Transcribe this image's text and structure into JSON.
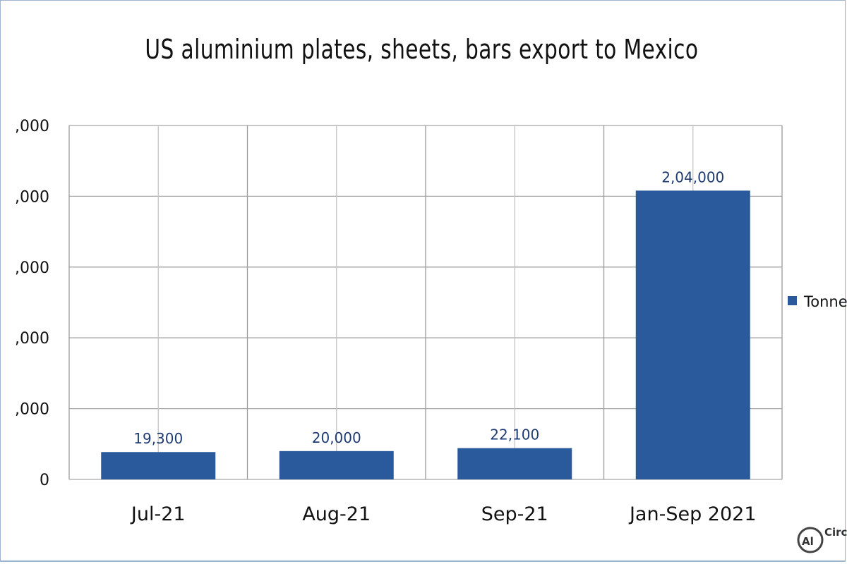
{
  "chart_data": {
    "type": "bar",
    "title": "US aluminium plates, sheets, bars export to Mexico",
    "categories": [
      "Jul-21",
      "Aug-21",
      "Sep-21",
      "Jan-Sep 2021"
    ],
    "series": [
      {
        "name": "Tonnes",
        "values": [
          19300,
          20000,
          22100,
          204000
        ],
        "labels": [
          "19,300",
          "20,000",
          "22,100",
          "2,04,000"
        ]
      }
    ],
    "y_ticks": [
      {
        "value": 0,
        "label": "0"
      },
      {
        "value": 50000,
        "label": ",000"
      },
      {
        "value": 100000,
        "label": ",000"
      },
      {
        "value": 150000,
        "label": ",000"
      },
      {
        "value": 200000,
        "label": ",000"
      },
      {
        "value": 250000,
        "label": ",000"
      }
    ],
    "ylim": [
      0,
      250000
    ],
    "grid": true,
    "legend_position": "right",
    "bar_color": "#2a5a9b"
  },
  "watermark": {
    "text": "Circ",
    "icon": "al-logo-icon"
  }
}
